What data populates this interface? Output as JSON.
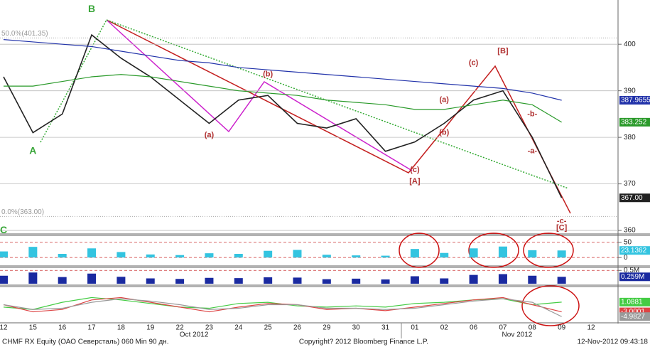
{
  "chart_data": [
    {
      "type": "line",
      "categories": [
        "12",
        "15",
        "16",
        "17",
        "18",
        "19",
        "22",
        "23",
        "24",
        "25",
        "26",
        "29",
        "30",
        "31",
        "01",
        "02",
        "06",
        "07",
        "08",
        "09",
        "12"
      ],
      "month_labels": [
        {
          "text": "Oct 2012",
          "x": "22"
        },
        {
          "text": "Nov 2012",
          "x": "07"
        }
      ],
      "ylim": [
        359.4,
        409.5
      ],
      "yticks": [
        360,
        370,
        380,
        390,
        400
      ],
      "grid": true,
      "series": [
        {
          "color": "#222222",
          "values": [
            393,
            381,
            385,
            402,
            397,
            393,
            388,
            383,
            388,
            389,
            383,
            382,
            384,
            377,
            379,
            383,
            388,
            390,
            380,
            367,
            null
          ],
          "value_labels": [
            null,
            null,
            null,
            null,
            null,
            null,
            null,
            null,
            null,
            null,
            null,
            null,
            null,
            null,
            null,
            null,
            null,
            null,
            null,
            "367.00",
            null
          ]
        },
        {
          "color": "#2233aa",
          "values": [
            401,
            400.5,
            400,
            399.5,
            398.5,
            397.5,
            396.5,
            396,
            395,
            394.5,
            394,
            393.5,
            393,
            392.5,
            392,
            391.5,
            391,
            390.5,
            389.5,
            387.9655,
            null
          ]
        },
        {
          "color": "#2a9a2a",
          "values": [
            391,
            391,
            392,
            393,
            393.5,
            393,
            392,
            391,
            390,
            389.5,
            389,
            388,
            387.5,
            387,
            386,
            386,
            387,
            388,
            387,
            383.252,
            null
          ]
        }
      ],
      "levels": [
        {
          "value": 401.35,
          "label": "50.0%(401.35)"
        },
        {
          "value": 363,
          "label": "0.0%(363.00)"
        }
      ],
      "annotations": [
        {
          "text": "B",
          "x": "17",
          "y": 407.5,
          "color": "#3aa63a"
        },
        {
          "text": "A",
          "x": "15",
          "y": 377,
          "color": "#3aa63a"
        },
        {
          "text": "(a)",
          "x": "23",
          "y": 380.5,
          "color": "#b03030"
        },
        {
          "text": "(b)",
          "x": "25",
          "y": 393.5,
          "color": "#b03030"
        },
        {
          "text": "(c)",
          "x": "01",
          "y": 373,
          "color": "#b03030"
        },
        {
          "text": "[A]",
          "x": "01",
          "y": 370.5,
          "color": "#b03030"
        },
        {
          "text": "(a)",
          "x": "02",
          "y": 388,
          "color": "#b03030"
        },
        {
          "text": "(b)",
          "x": "02",
          "y": 381,
          "color": "#b03030"
        },
        {
          "text": "(c)",
          "x": "06",
          "y": 396,
          "color": "#b03030"
        },
        {
          "text": "[B]",
          "x": "07",
          "y": 398.5,
          "color": "#b03030"
        },
        {
          "text": "-b-",
          "x": "08",
          "y": 385,
          "color": "#b03030"
        },
        {
          "text": "-a-",
          "x": "08",
          "y": 377,
          "color": "#b03030"
        },
        {
          "text": "-c-",
          "x": "09",
          "y": 362,
          "color": "#b03030"
        },
        {
          "text": "[C]",
          "x": "09",
          "y": 360.5,
          "color": "#b03030"
        },
        {
          "text": "C",
          "x": "12",
          "y": 360,
          "color": "#3aa63a"
        }
      ]
    },
    {
      "type": "bar",
      "ylim": [
        -23,
        68
      ],
      "yticks": [
        50,
        0
      ],
      "series": [
        {
          "color": "#33c4e0",
          "values": [
            20,
            35,
            12,
            30,
            18,
            10,
            8,
            14,
            12,
            22,
            25,
            9,
            7,
            6,
            28,
            15,
            30,
            36,
            24,
            23.1362,
            null
          ]
        }
      ]
    },
    {
      "type": "bar",
      "ylim": [
        0,
        560000
      ],
      "yticks": [
        {
          "value": 500000,
          "label": "0.5M"
        }
      ],
      "series": [
        {
          "color": "#1a2aa0",
          "values": [
            300000,
            420000,
            250000,
            380000,
            260000,
            200000,
            180000,
            220000,
            210000,
            240000,
            230000,
            170000,
            190000,
            160000,
            280000,
            200000,
            330000,
            360000,
            300000,
            259000,
            null
          ],
          "value_labels": [
            null,
            null,
            null,
            null,
            null,
            null,
            null,
            null,
            null,
            null,
            null,
            null,
            null,
            null,
            null,
            null,
            null,
            null,
            null,
            "0.259M",
            null
          ]
        }
      ]
    },
    {
      "type": "line",
      "ylim": [
        -7,
        7
      ],
      "yticks": [],
      "series": [
        {
          "color": "#44cc44",
          "values": [
            -1,
            -2,
            1,
            3,
            2,
            0.5,
            -1,
            -1.5,
            0.5,
            1,
            -0.5,
            -1,
            -0.5,
            -1,
            0.5,
            1,
            2,
            2.5,
            0,
            1.0881,
            null
          ]
        },
        {
          "color": "#dd4444",
          "values": [
            0,
            -3,
            -2,
            2,
            3,
            1,
            -1,
            -3,
            -1,
            0.5,
            0,
            -2,
            -1.5,
            -2.5,
            -1,
            0.5,
            2,
            3,
            0,
            -3.0001,
            null
          ]
        },
        {
          "color": "#999999",
          "values": [
            0,
            -2,
            -1.5,
            1,
            2.5,
            1.5,
            0,
            -2,
            -1.5,
            0,
            0,
            -1.5,
            -1.5,
            -2,
            -1.5,
            0,
            1.5,
            2.5,
            1,
            -4.9827,
            null
          ]
        }
      ]
    }
  ],
  "footer": {
    "left": "CHMF RX Equity (ОАО Северсталь) 060 Min 90 дн.",
    "center": "Copyright? 2012 Bloomberg Finance L.P.",
    "right": "12-Nov-2012 09:43:18"
  }
}
